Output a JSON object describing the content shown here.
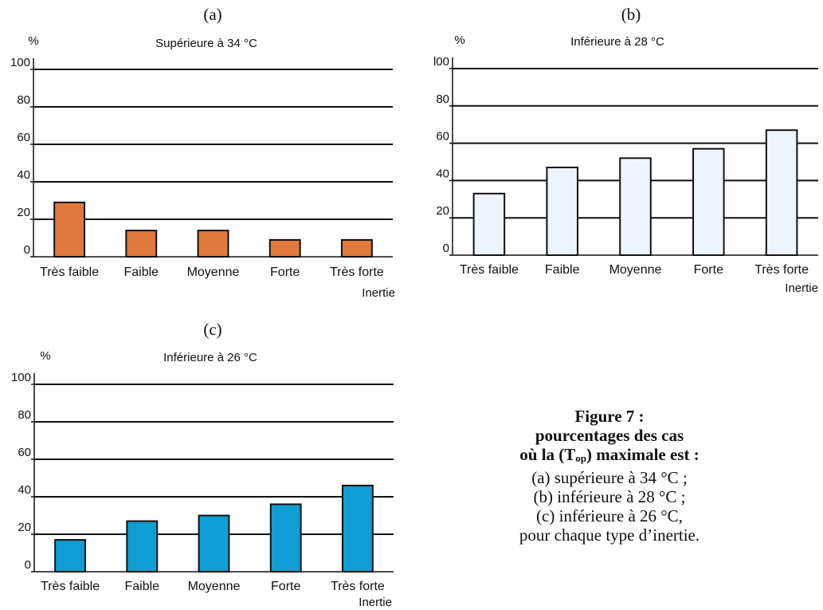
{
  "colors": {
    "a": "#e07a3c",
    "b": "#edf4fb",
    "c": "#0e9ed3",
    "stroke": "#111111"
  },
  "chart_data": [
    {
      "type": "bar",
      "panel": "(a)",
      "subtitle": "Supérieure à 34 °C",
      "ylabel": "%",
      "xlabel": "Inertie",
      "ylim": [
        0,
        100
      ],
      "yticks": [
        "0",
        "20",
        "40",
        "60",
        "80",
        "100"
      ],
      "grid": true,
      "categories": [
        "Très faible",
        "Faible",
        "Moyenne",
        "Forte",
        "Très forte"
      ],
      "values": [
        29,
        14,
        14,
        9,
        9
      ]
    },
    {
      "type": "bar",
      "panel": "(b)",
      "subtitle": "Inférieure à 28 °C",
      "ylabel": "%",
      "xlabel": "Inertie",
      "ylim": [
        0,
        100
      ],
      "yticks": [
        "0",
        "20",
        "40",
        "60",
        "80",
        "l00"
      ],
      "grid": true,
      "categories": [
        "Très faible",
        "Faible",
        "Moyenne",
        "Forte",
        "Très forte"
      ],
      "values": [
        33,
        47,
        52,
        57,
        67
      ]
    },
    {
      "type": "bar",
      "panel": "(c)",
      "subtitle": "Inférieure à 26 °C",
      "ylabel": "%",
      "xlabel": "Inertie",
      "ylim": [
        0,
        100
      ],
      "yticks": [
        "0",
        "20",
        "40",
        "60",
        "80",
        "100"
      ],
      "grid": true,
      "categories": [
        "Très faible",
        "Faible",
        "Moyenne",
        "Forte",
        "Très forte"
      ],
      "values": [
        17,
        27,
        30,
        36,
        46
      ]
    }
  ],
  "caption": {
    "line1": "Figure 7 :",
    "line2": "pourcentages des cas",
    "line3_pre": "où la (T",
    "line3_sub": "op",
    "line3_post": ") maximale est :",
    "line4": "(a) supérieure à 34 °C ;",
    "line5": "(b) inférieure à 28 °C ;",
    "line6": "(c) inférieure à 26 °C,",
    "line7": "pour chaque type d’inertie."
  }
}
